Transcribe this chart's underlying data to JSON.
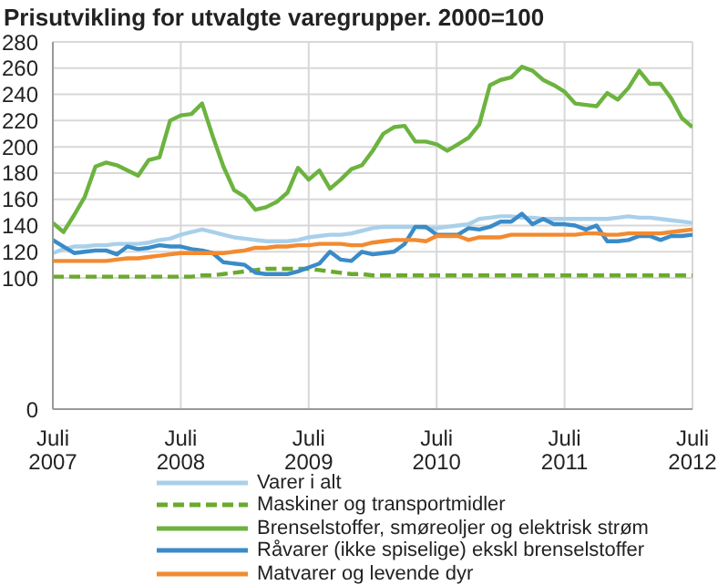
{
  "chart_data": {
    "type": "line",
    "title": "Prisutvikling for utvalgte varegrupper. 2000=100",
    "x": [
      "2007-07",
      "2007-08",
      "2007-09",
      "2007-10",
      "2007-11",
      "2007-12",
      "2008-01",
      "2008-02",
      "2008-03",
      "2008-04",
      "2008-05",
      "2008-06",
      "2008-07",
      "2008-08",
      "2008-09",
      "2008-10",
      "2008-11",
      "2008-12",
      "2009-01",
      "2009-02",
      "2009-03",
      "2009-04",
      "2009-05",
      "2009-06",
      "2009-07",
      "2009-08",
      "2009-09",
      "2009-10",
      "2009-11",
      "2009-12",
      "2010-01",
      "2010-02",
      "2010-03",
      "2010-04",
      "2010-05",
      "2010-06",
      "2010-07",
      "2010-08",
      "2010-09",
      "2010-10",
      "2010-11",
      "2010-12",
      "2011-01",
      "2011-02",
      "2011-03",
      "2011-04",
      "2011-05",
      "2011-06",
      "2011-07",
      "2011-08",
      "2011-09",
      "2011-10",
      "2011-11",
      "2011-12",
      "2012-01",
      "2012-02",
      "2012-03",
      "2012-04",
      "2012-05",
      "2012-06",
      "2012-07"
    ],
    "xlim": [
      "2007-07",
      "2012-07"
    ],
    "xticks": [
      {
        "value": "2007-07",
        "label": "Juli\n2007"
      },
      {
        "value": "2008-07",
        "label": "Juli\n2008"
      },
      {
        "value": "2009-07",
        "label": "Juli\n2009"
      },
      {
        "value": "2010-07",
        "label": "Juli\n2010"
      },
      {
        "value": "2011-07",
        "label": "Juli\n2011"
      },
      {
        "value": "2012-07",
        "label": "Juli\n2012"
      }
    ],
    "ylim": [
      0,
      280
    ],
    "yticks": [
      0,
      100,
      120,
      140,
      160,
      180,
      200,
      220,
      240,
      260,
      280
    ],
    "grid": true,
    "legend": "bottom",
    "series": [
      {
        "name": "Varer i alt",
        "color": "#a9d0ea",
        "values": [
          119,
          122,
          124,
          124,
          125,
          125,
          126,
          126,
          126,
          127,
          129,
          130,
          133,
          135,
          137,
          135,
          133,
          131,
          130,
          129,
          128,
          128,
          128,
          129,
          131,
          132,
          133,
          133,
          134,
          136,
          138,
          139,
          139,
          139,
          139,
          138,
          138,
          139,
          140,
          141,
          145,
          146,
          147,
          147,
          146,
          146,
          145,
          145,
          145,
          145,
          145,
          145,
          145,
          146,
          147,
          146,
          146,
          145,
          144,
          143,
          142
        ]
      },
      {
        "name": "Maskiner og transportmidler",
        "color": "#6aaa2c",
        "line_style": "dashed",
        "values": [
          101,
          101,
          101,
          101,
          101,
          101,
          101,
          101,
          101,
          101,
          101,
          101,
          101,
          101,
          102,
          102,
          103,
          104,
          105,
          106,
          107,
          107,
          107,
          107,
          107,
          106,
          105,
          104,
          103,
          103,
          102,
          102,
          102,
          102,
          102,
          102,
          102,
          102,
          102,
          102,
          102,
          102,
          102,
          102,
          102,
          102,
          102,
          102,
          102,
          102,
          102,
          102,
          102,
          102,
          102,
          102,
          102,
          102,
          102,
          102,
          102
        ]
      },
      {
        "name": "Brenselstoffer, smøreoljer og elektrisk strøm",
        "color": "#6cb33f",
        "values": [
          142,
          135,
          148,
          162,
          185,
          188,
          186,
          182,
          178,
          190,
          192,
          220,
          224,
          225,
          233,
          208,
          185,
          167,
          162,
          152,
          154,
          158,
          165,
          184,
          175,
          182,
          168,
          175,
          183,
          186,
          197,
          210,
          215,
          216,
          204,
          204,
          202,
          197,
          202,
          207,
          217,
          247,
          251,
          253,
          261,
          258,
          251,
          247,
          242,
          233,
          232,
          231,
          241,
          236,
          245,
          258,
          248,
          248,
          237,
          222,
          215
        ]
      },
      {
        "name": "Råvarer (ikke spiselige) ekskl brenselstoffer",
        "color": "#3a8bc8",
        "values": [
          129,
          124,
          119,
          120,
          121,
          121,
          118,
          124,
          122,
          123,
          125,
          124,
          124,
          122,
          121,
          119,
          112,
          111,
          110,
          104,
          103,
          103,
          103,
          105,
          108,
          111,
          120,
          114,
          113,
          120,
          118,
          119,
          120,
          126,
          139,
          139,
          133,
          133,
          133,
          138,
          137,
          139,
          143,
          143,
          149,
          141,
          145,
          141,
          141,
          140,
          137,
          140,
          128,
          128,
          129,
          132,
          132,
          129,
          132,
          132,
          133
        ]
      },
      {
        "name": "Matvarer og levende dyr",
        "color": "#f28a30",
        "values": [
          113,
          113,
          113,
          113,
          113,
          113,
          114,
          115,
          115,
          116,
          117,
          118,
          119,
          119,
          119,
          119,
          119,
          120,
          121,
          123,
          123,
          124,
          124,
          125,
          125,
          126,
          126,
          126,
          125,
          125,
          127,
          128,
          129,
          129,
          129,
          128,
          132,
          132,
          132,
          129,
          131,
          131,
          131,
          133,
          133,
          133,
          133,
          133,
          133,
          133,
          134,
          134,
          133,
          133,
          134,
          134,
          134,
          134,
          135,
          136,
          137
        ]
      }
    ]
  }
}
